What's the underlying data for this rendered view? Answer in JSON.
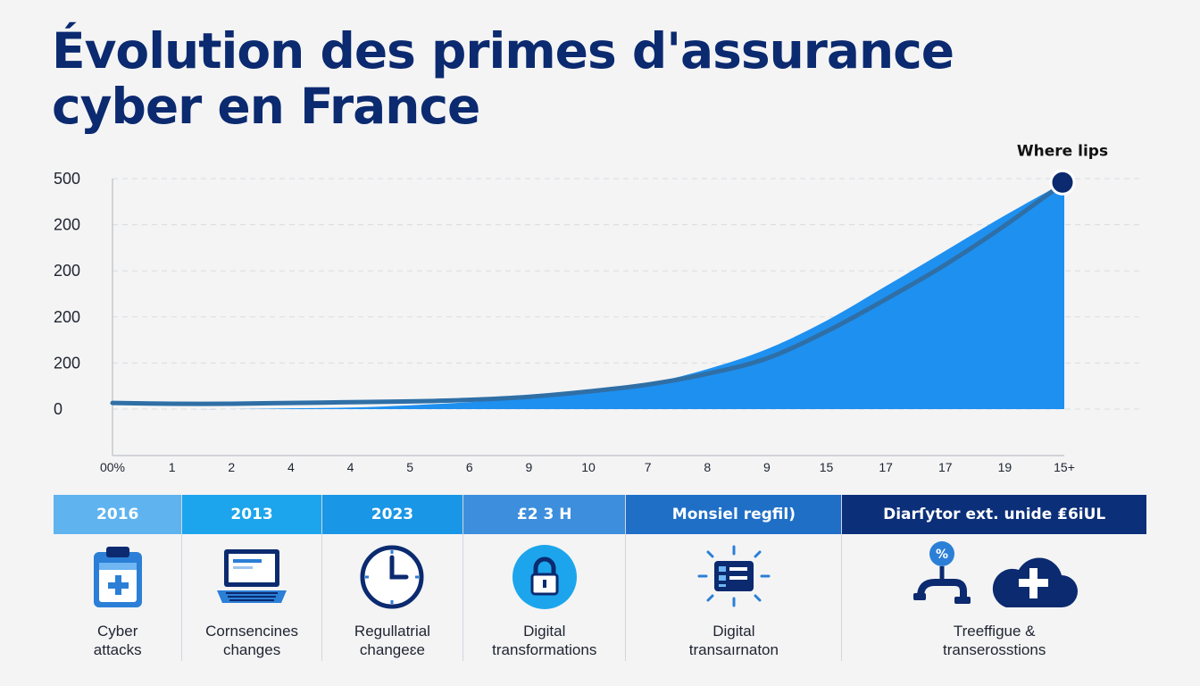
{
  "page": {
    "title": "Évolution des primes d'assurance cyber en France"
  },
  "chart_data": {
    "type": "area",
    "title": "Évolution des primes d'assurance cyber en France",
    "y_tick_labels": [
      "500",
      "200",
      "200",
      "200",
      "200",
      "0"
    ],
    "x_tick_labels": [
      "00%",
      "1",
      "2",
      "4",
      "4",
      "5",
      "6",
      "9",
      "10",
      "7",
      "8",
      "9",
      "15",
      "17",
      "17",
      "19",
      "15+"
    ],
    "grid": true,
    "peak_annotation": "Where lips",
    "series": [
      {
        "values": [
          0.0,
          0.0,
          0.0,
          0.1,
          0.2,
          0.5,
          0.9,
          1.5,
          2.2,
          3.3,
          5.2,
          7.8,
          11.5,
          16.0,
          20.6,
          25.2,
          29.5
        ]
      },
      {
        "values": [
          0.8,
          0.7,
          0.7,
          0.8,
          0.9,
          1.0,
          1.2,
          1.6,
          2.3,
          3.2,
          4.6,
          6.6,
          10.1,
          14.3,
          18.8,
          23.9,
          29.5
        ]
      }
    ],
    "colors": {
      "area": "#1e90f0",
      "line": "#2f6fa6",
      "marker": "#0b2a6f"
    }
  },
  "drivers": [
    {
      "year": "2016",
      "label": "Cyber\nattacks",
      "icon": "clipboard-plus-icon",
      "color": "#5fb3ef"
    },
    {
      "year": "2013",
      "label": "Cornsencines\nchanges",
      "icon": "laptop-icon",
      "color": "#1ca5ec"
    },
    {
      "year": "2023",
      "label": "Regullatrial\nchangeɛe",
      "icon": "clock-icon",
      "color": "#1a96e6"
    },
    {
      "year": "£2 3 H",
      "label": "Digital\ntransformations",
      "icon": "lock-icon",
      "color": "#3d8fdd"
    },
    {
      "year": "Monsiel regfil)",
      "label": "Digital\ntransaırnaton",
      "icon": "id-card-icon",
      "color": "#1f6fc7"
    },
    {
      "year": "Diarſytor ext. unide ₤6iUL",
      "label": "Treeffigue &\ntranserosstions",
      "icon": "cloud-plus-icon",
      "color": "#0b2f78"
    }
  ]
}
